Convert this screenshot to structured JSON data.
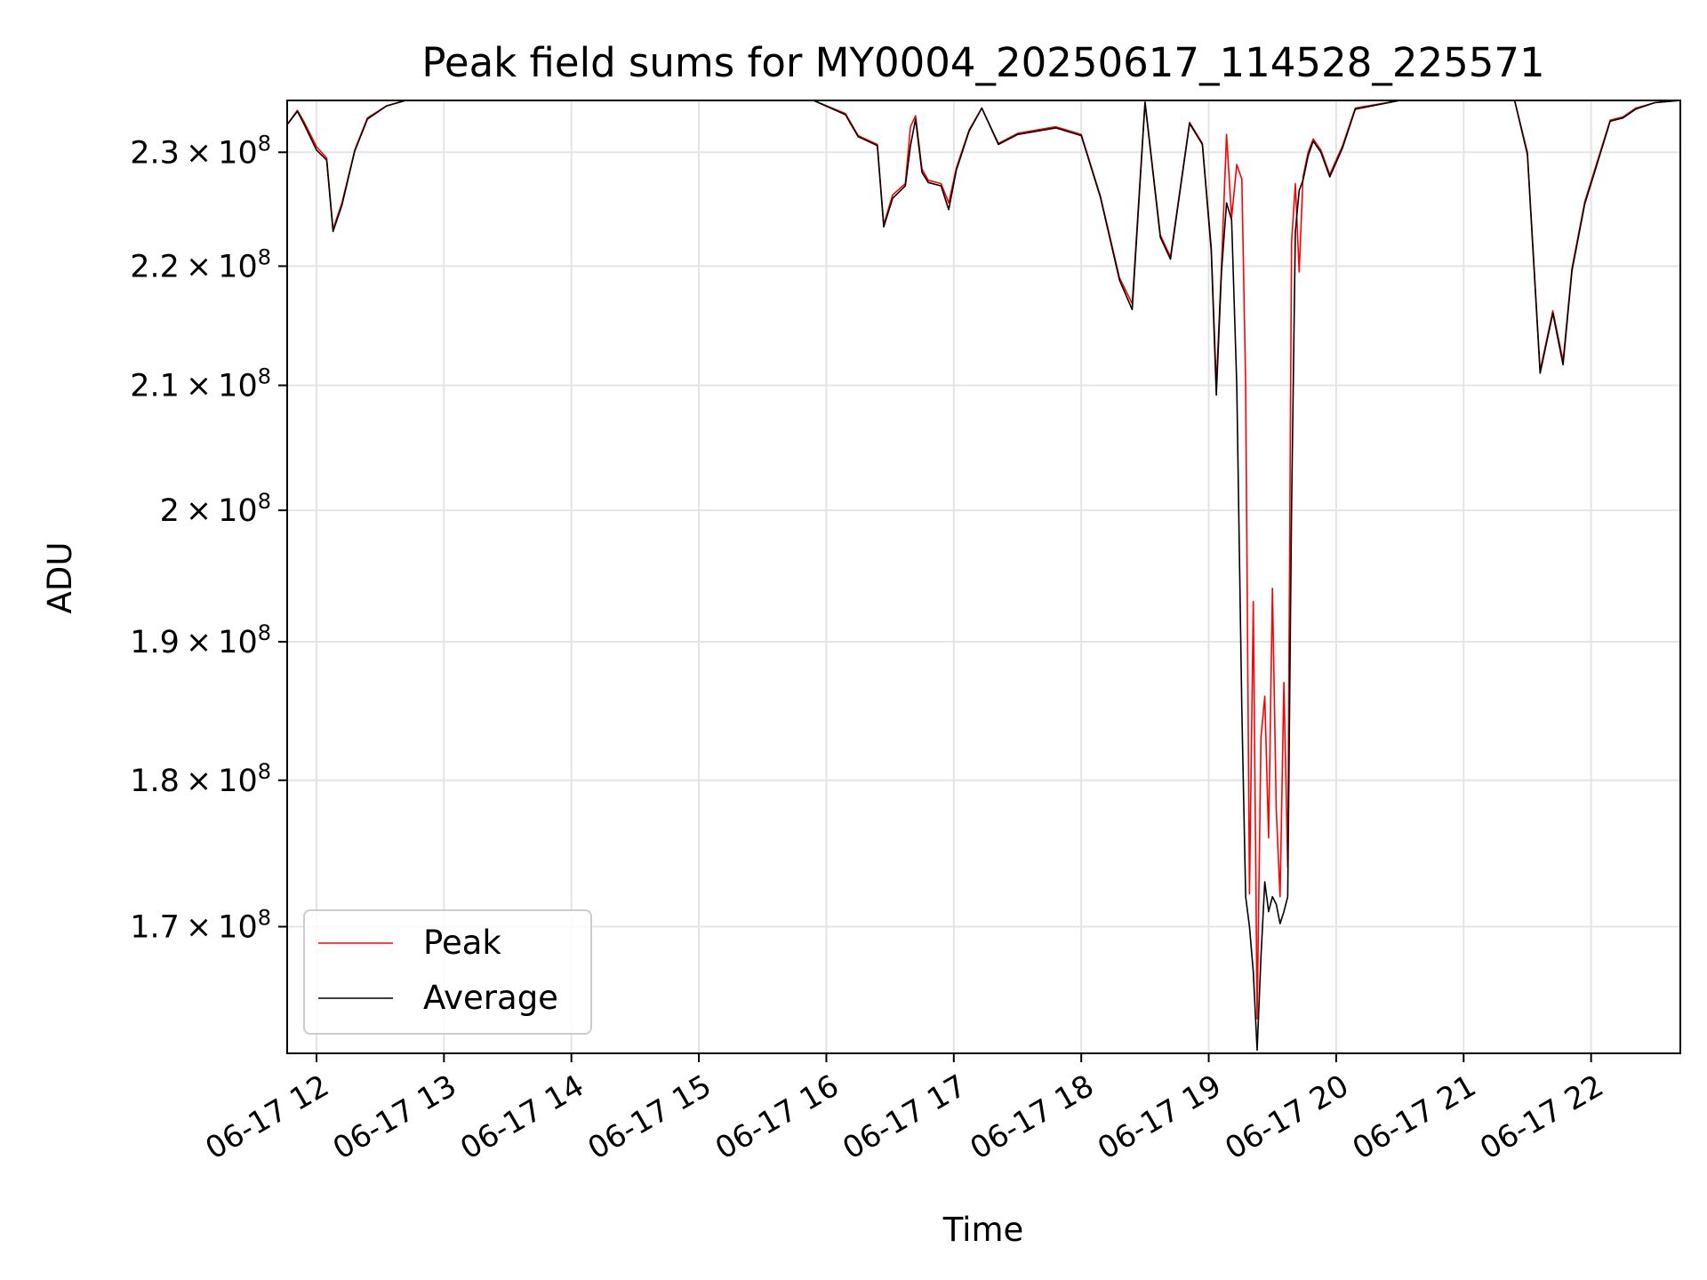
{
  "chart_data": {
    "type": "line",
    "title": "Peak field sums for MY0004_20250617_114528_225571",
    "xlabel": "Time",
    "ylabel": "ADU",
    "y_scale": "log",
    "grid": true,
    "legend_position": "lower-left",
    "x_date": "06-17",
    "xlim_hours": [
      11.77,
      22.7
    ],
    "ylim": [
      161800000,
      234700000
    ],
    "x_ticks": [
      {
        "hour": 12,
        "label": "06-17 12"
      },
      {
        "hour": 13,
        "label": "06-17 13"
      },
      {
        "hour": 14,
        "label": "06-17 14"
      },
      {
        "hour": 15,
        "label": "06-17 15"
      },
      {
        "hour": 16,
        "label": "06-17 16"
      },
      {
        "hour": 17,
        "label": "06-17 17"
      },
      {
        "hour": 18,
        "label": "06-17 18"
      },
      {
        "hour": 19,
        "label": "06-17 19"
      },
      {
        "hour": 20,
        "label": "06-17 20"
      },
      {
        "hour": 21,
        "label": "06-17 21"
      },
      {
        "hour": 22,
        "label": "06-17 22"
      }
    ],
    "y_ticks": [
      {
        "value": 170000000,
        "mant": "1.7"
      },
      {
        "value": 180000000,
        "mant": "1.8"
      },
      {
        "value": 190000000,
        "mant": "1.9"
      },
      {
        "value": 200000000,
        "mant": "2"
      },
      {
        "value": 210000000,
        "mant": "2.1"
      },
      {
        "value": 220000000,
        "mant": "2.2"
      },
      {
        "value": 230000000,
        "mant": "2.3"
      }
    ],
    "y_tick_times": "×",
    "y_tick_base": "10",
    "y_tick_exponent": "8",
    "series": [
      {
        "name": "Peak",
        "color": "#ff0000",
        "x": [
          11.77,
          11.85,
          11.9,
          12.0,
          12.08,
          12.13,
          12.2,
          12.3,
          12.4,
          12.55,
          12.7,
          13.0,
          14.0,
          15.0,
          15.9,
          16.15,
          16.25,
          16.4,
          16.45,
          16.52,
          16.62,
          16.66,
          16.7,
          16.75,
          16.8,
          16.9,
          16.96,
          17.02,
          17.12,
          17.22,
          17.35,
          17.5,
          17.8,
          18.0,
          18.15,
          18.3,
          18.4,
          18.5,
          18.62,
          18.7,
          18.85,
          18.95,
          19.02,
          19.06,
          19.1,
          19.14,
          19.18,
          19.22,
          19.26,
          19.29,
          19.32,
          19.35,
          19.38,
          19.41,
          19.44,
          19.47,
          19.5,
          19.53,
          19.56,
          19.59,
          19.62,
          19.65,
          19.68,
          19.71,
          19.74,
          19.78,
          19.82,
          19.88,
          19.95,
          20.05,
          20.15,
          20.5,
          21.0,
          21.25,
          21.4,
          21.5,
          21.6,
          21.7,
          21.78,
          21.85,
          21.95,
          22.03,
          22.15,
          22.25,
          22.35,
          22.5,
          22.7
        ],
        "values": [
          232500000,
          233800000,
          232800000,
          230500000,
          229500000,
          223200000,
          225500000,
          230200000,
          233100000,
          234200000,
          234700000,
          234700000,
          234700000,
          234700000,
          234700000,
          233500000,
          231500000,
          230700000,
          223600000,
          226200000,
          227200000,
          232300000,
          233300000,
          228500000,
          227500000,
          227200000,
          225500000,
          228600000,
          232000000,
          234000000,
          230800000,
          231700000,
          232300000,
          231600000,
          226100000,
          219000000,
          216800000,
          234600000,
          222700000,
          220800000,
          232700000,
          230800000,
          221600000,
          210000000,
          220000000,
          231600000,
          224200000,
          228900000,
          227600000,
          210000000,
          172200000,
          193000000,
          164000000,
          183000000,
          186000000,
          176000000,
          194000000,
          178000000,
          172000000,
          187000000,
          174000000,
          222000000,
          227200000,
          219500000,
          227800000,
          230000000,
          231200000,
          230200000,
          228000000,
          230600000,
          234000000,
          234700000,
          234700000,
          234700000,
          234700000,
          230000000,
          211200000,
          216200000,
          212000000,
          219800000,
          225600000,
          228500000,
          232900000,
          233200000,
          234000000,
          234500000,
          234700000
        ]
      },
      {
        "name": "Average",
        "color": "#000000",
        "x": [
          11.77,
          11.85,
          11.9,
          12.0,
          12.08,
          12.13,
          12.2,
          12.3,
          12.4,
          12.55,
          12.7,
          13.0,
          14.0,
          15.0,
          15.9,
          16.15,
          16.25,
          16.4,
          16.45,
          16.52,
          16.62,
          16.66,
          16.7,
          16.75,
          16.8,
          16.9,
          16.96,
          17.02,
          17.12,
          17.22,
          17.35,
          17.5,
          17.8,
          18.0,
          18.15,
          18.3,
          18.4,
          18.5,
          18.62,
          18.7,
          18.85,
          18.95,
          19.02,
          19.06,
          19.1,
          19.14,
          19.18,
          19.22,
          19.26,
          19.29,
          19.32,
          19.35,
          19.38,
          19.41,
          19.44,
          19.47,
          19.5,
          19.53,
          19.56,
          19.59,
          19.62,
          19.65,
          19.68,
          19.71,
          19.74,
          19.78,
          19.82,
          19.88,
          19.95,
          20.05,
          20.15,
          20.5,
          21.0,
          21.25,
          21.4,
          21.5,
          21.6,
          21.7,
          21.78,
          21.85,
          21.95,
          22.03,
          22.15,
          22.25,
          22.35,
          22.5,
          22.7
        ],
        "values": [
          232500000,
          233700000,
          232600000,
          230200000,
          229300000,
          223000000,
          225300000,
          230100000,
          233000000,
          234200000,
          234700000,
          234700000,
          234700000,
          234700000,
          234700000,
          233400000,
          231400000,
          230600000,
          223400000,
          225900000,
          227000000,
          230600000,
          233000000,
          228200000,
          227300000,
          227000000,
          224900000,
          228400000,
          231900000,
          234000000,
          230700000,
          231600000,
          232200000,
          231500000,
          226000000,
          218800000,
          216300000,
          234500000,
          222500000,
          220600000,
          232600000,
          230700000,
          221300000,
          209200000,
          219500000,
          225500000,
          224000000,
          210000000,
          185000000,
          172000000,
          170000000,
          167000000,
          162000000,
          168000000,
          173000000,
          171000000,
          172000000,
          171500000,
          170200000,
          171000000,
          172000000,
          200000000,
          223000000,
          226600000,
          227500000,
          229700000,
          231000000,
          230000000,
          227800000,
          230400000,
          233900000,
          234700000,
          234700000,
          234700000,
          234700000,
          229800000,
          211000000,
          216000000,
          211700000,
          219600000,
          225400000,
          228300000,
          232800000,
          233100000,
          233900000,
          234500000,
          234700000
        ]
      }
    ]
  }
}
